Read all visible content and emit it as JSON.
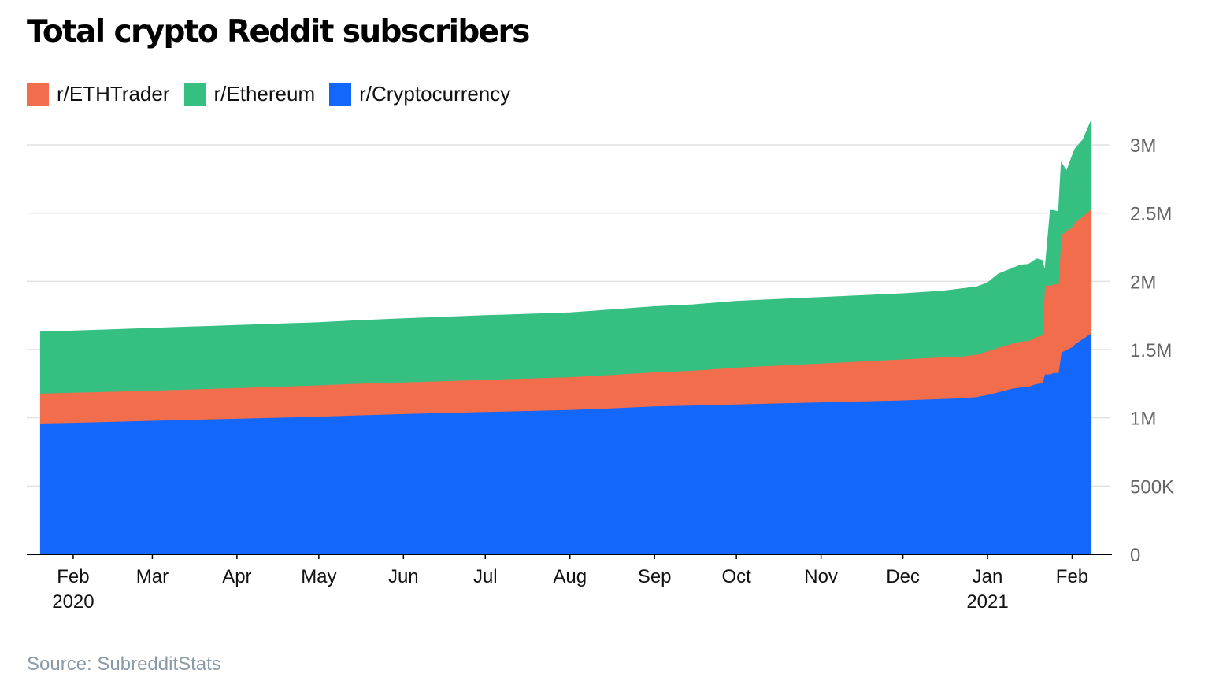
{
  "chart_data": {
    "type": "area",
    "stacked": true,
    "title": "Total crypto Reddit subscribers",
    "source": "Source: SubredditStats",
    "xlabel": "",
    "ylabel": "",
    "ylim": [
      0,
      3000000
    ],
    "yticks": [
      {
        "value": 0,
        "label": "0"
      },
      {
        "value": 500000,
        "label": "500K"
      },
      {
        "value": 1000000,
        "label": "1M"
      },
      {
        "value": 1500000,
        "label": "1.5M"
      },
      {
        "value": 2000000,
        "label": "2M"
      },
      {
        "value": 2500000,
        "label": "2.5M"
      },
      {
        "value": 3000000,
        "label": "3M"
      }
    ],
    "xrange": [
      "2020-01-15",
      "2021-02-15"
    ],
    "xticks": [
      {
        "date": "2020-02-01",
        "label": "Feb",
        "sublabel": "2020"
      },
      {
        "date": "2020-03-01",
        "label": "Mar",
        "sublabel": ""
      },
      {
        "date": "2020-04-01",
        "label": "Apr",
        "sublabel": ""
      },
      {
        "date": "2020-05-01",
        "label": "May",
        "sublabel": ""
      },
      {
        "date": "2020-06-01",
        "label": "Jun",
        "sublabel": ""
      },
      {
        "date": "2020-07-01",
        "label": "Jul",
        "sublabel": ""
      },
      {
        "date": "2020-08-01",
        "label": "Aug",
        "sublabel": ""
      },
      {
        "date": "2020-09-01",
        "label": "Sep",
        "sublabel": ""
      },
      {
        "date": "2020-10-01",
        "label": "Oct",
        "sublabel": ""
      },
      {
        "date": "2020-11-01",
        "label": "Nov",
        "sublabel": ""
      },
      {
        "date": "2020-12-01",
        "label": "Dec",
        "sublabel": ""
      },
      {
        "date": "2021-01-01",
        "label": "Jan",
        "sublabel": "2021"
      },
      {
        "date": "2021-02-01",
        "label": "Feb",
        "sublabel": ""
      }
    ],
    "x": [
      "2020-01-20",
      "2020-02-01",
      "2020-03-01",
      "2020-04-01",
      "2020-05-01",
      "2020-05-15",
      "2020-06-01",
      "2020-07-01",
      "2020-08-01",
      "2020-08-15",
      "2020-09-01",
      "2020-09-15",
      "2020-10-01",
      "2020-11-01",
      "2020-12-01",
      "2020-12-15",
      "2020-12-22",
      "2020-12-28",
      "2021-01-01",
      "2021-01-05",
      "2021-01-10",
      "2021-01-13",
      "2021-01-16",
      "2021-01-19",
      "2021-01-21",
      "2021-01-22",
      "2021-01-24",
      "2021-01-25",
      "2021-01-27",
      "2021-01-28",
      "2021-01-30",
      "2021-02-01",
      "2021-02-02",
      "2021-02-05",
      "2021-02-08"
    ],
    "series": [
      {
        "name": "r/Cryptocurrency",
        "color": "#1467fb",
        "values": [
          960000,
          965000,
          980000,
          995000,
          1010000,
          1020000,
          1030000,
          1045000,
          1060000,
          1070000,
          1085000,
          1092000,
          1100000,
          1115000,
          1130000,
          1140000,
          1145000,
          1155000,
          1170000,
          1190000,
          1215000,
          1225000,
          1230000,
          1250000,
          1255000,
          1320000,
          1320000,
          1330000,
          1330000,
          1480000,
          1500000,
          1520000,
          1540000,
          1580000,
          1620000
        ]
      },
      {
        "name": "r/ETHTrader",
        "color": "#f16d4b",
        "values": [
          220000,
          221000,
          222000,
          225000,
          230000,
          232000,
          232000,
          235000,
          240000,
          245000,
          250000,
          255000,
          270000,
          285000,
          300000,
          305000,
          305000,
          310000,
          320000,
          325000,
          330000,
          335000,
          335000,
          345000,
          350000,
          650000,
          650000,
          650000,
          650000,
          860000,
          870000,
          880000,
          890000,
          900000,
          910000
        ]
      },
      {
        "name": "r/Ethereum",
        "color": "#35c082",
        "values": [
          450000,
          451000,
          455000,
          458000,
          458000,
          461000,
          465000,
          470000,
          470000,
          475000,
          480000,
          482000,
          485000,
          483000,
          480000,
          483000,
          495000,
          495000,
          500000,
          540000,
          550000,
          560000,
          560000,
          570000,
          550000,
          110000,
          550000,
          540000,
          530000,
          530000,
          440000,
          520000,
          540000,
          560000,
          650000
        ]
      }
    ],
    "legend_position": "top-left",
    "grid": true
  }
}
